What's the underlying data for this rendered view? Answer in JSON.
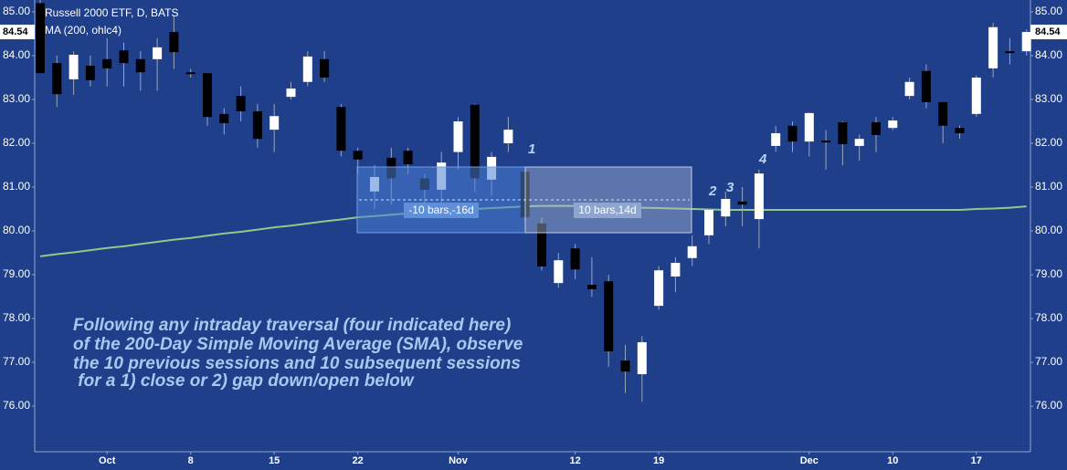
{
  "chart_data": {
    "type": "candlestick",
    "title": "Russell 2000 ETF, D, BATS",
    "indicator": "MA (200, ohlc4)",
    "last_price": {
      "value": 84.54,
      "label": "84.54"
    },
    "categories": [
      null,
      null,
      null,
      null,
      "Oct",
      null,
      null,
      null,
      null,
      "8",
      null,
      null,
      null,
      null,
      "15",
      null,
      null,
      null,
      null,
      "22",
      null,
      null,
      null,
      null,
      null,
      "Nov",
      null,
      null,
      null,
      null,
      null,
      null,
      "12",
      null,
      null,
      null,
      null,
      "19",
      null,
      null,
      null,
      null,
      null,
      null,
      null,
      null,
      "Dec",
      null,
      null,
      null,
      null,
      "10",
      null,
      null,
      null,
      null,
      "17",
      null,
      null,
      null
    ],
    "open": [
      85.2,
      83.83,
      83.46,
      83.77,
      83.92,
      84.12,
      83.92,
      83.92,
      84.54,
      83.62,
      83.6,
      82.67,
      83.08,
      82.73,
      82.31,
      83.06,
      83.4,
      83.92,
      82.83,
      81.83,
      80.9,
      81.67,
      81.83,
      81.2,
      80.94,
      81.8,
      82.88,
      81.17,
      82.0,
      81.35,
      80.17,
      78.81,
      79.6,
      78.77,
      78.85,
      77.04,
      76.73,
      78.29,
      78.96,
      79.38,
      79.9,
      80.33,
      80.67,
      80.27,
      81.94,
      82.4,
      82.04,
      82.06,
      82.48,
      81.94,
      82.48,
      82.35,
      83.08,
      83.65,
      82.94,
      82.35,
      82.67,
      83.71,
      84.1,
      84.1
    ],
    "high": [
      85.27,
      84.0,
      84.1,
      84.0,
      84.4,
      84.3,
      84.1,
      84.4,
      84.9,
      83.7,
      83.6,
      82.8,
      83.3,
      82.9,
      82.9,
      83.4,
      84.1,
      84.1,
      82.9,
      81.9,
      81.5,
      81.9,
      81.9,
      81.3,
      81.8,
      82.6,
      82.9,
      81.8,
      82.6,
      81.4,
      80.3,
      79.5,
      79.7,
      79.4,
      79.0,
      77.4,
      77.6,
      79.2,
      79.4,
      79.9,
      80.5,
      80.9,
      81.0,
      81.4,
      82.4,
      82.5,
      82.7,
      82.3,
      82.5,
      82.2,
      82.6,
      82.6,
      83.5,
      83.8,
      82.94,
      82.4,
      83.55,
      84.75,
      84.4,
      84.6
    ],
    "low": [
      83.6,
      82.83,
      83.1,
      83.3,
      83.3,
      83.3,
      83.2,
      83.2,
      83.7,
      83.5,
      82.4,
      82.2,
      82.5,
      81.9,
      81.8,
      83.0,
      83.3,
      83.4,
      81.7,
      81.3,
      80.5,
      80.6,
      81.3,
      80.5,
      80.6,
      81.4,
      80.9,
      80.8,
      81.8,
      80.2,
      79.1,
      78.7,
      78.9,
      78.5,
      76.9,
      76.3,
      76.1,
      78.2,
      78.6,
      79.2,
      79.7,
      80.1,
      80.1,
      79.6,
      81.8,
      81.8,
      81.7,
      81.4,
      81.5,
      81.6,
      81.8,
      82.3,
      83.0,
      82.8,
      82.0,
      82.1,
      82.6,
      83.5,
      83.8,
      84.0
    ],
    "close": [
      83.6,
      83.12,
      84.02,
      83.44,
      83.71,
      83.83,
      83.62,
      84.19,
      84.08,
      83.58,
      82.6,
      82.46,
      82.73,
      82.1,
      82.62,
      83.25,
      83.98,
      83.5,
      81.83,
      81.63,
      81.23,
      81.2,
      81.52,
      80.94,
      81.56,
      82.5,
      81.2,
      81.69,
      82.31,
      80.31,
      79.19,
      79.33,
      79.12,
      78.67,
      77.25,
      76.79,
      77.46,
      79.1,
      79.27,
      79.65,
      80.48,
      80.73,
      80.6,
      81.31,
      82.23,
      82.04,
      82.69,
      82.02,
      81.98,
      82.1,
      82.19,
      82.52,
      83.4,
      82.94,
      82.4,
      82.23,
      83.5,
      84.65,
      84.06,
      84.54
    ],
    "up_color": "#ffffff",
    "down_color": "#000000",
    "ma": {
      "color": "#8fca8a",
      "values": [
        79.42,
        79.47,
        79.51,
        79.56,
        79.61,
        79.65,
        79.7,
        79.75,
        79.8,
        79.84,
        79.89,
        79.94,
        79.98,
        80.03,
        80.08,
        80.12,
        80.17,
        80.22,
        80.26,
        80.31,
        80.34,
        80.37,
        80.4,
        80.43,
        80.45,
        80.48,
        80.5,
        80.52,
        80.54,
        80.56,
        80.57,
        80.57,
        80.57,
        80.56,
        80.55,
        80.54,
        80.53,
        80.52,
        80.51,
        80.5,
        80.49,
        80.48,
        80.48,
        80.48,
        80.48,
        80.48,
        80.48,
        80.48,
        80.48,
        80.48,
        80.48,
        80.48,
        80.48,
        80.48,
        80.48,
        80.48,
        80.5,
        80.51,
        80.53,
        80.56
      ]
    },
    "ylim": [
      74.96,
      85.27
    ],
    "yticks": [
      {
        "value": 76,
        "label": "76.00"
      },
      {
        "value": 77,
        "label": "77.00"
      },
      {
        "value": 78,
        "label": "78.00"
      },
      {
        "value": 79,
        "label": "79.00"
      },
      {
        "value": 80,
        "label": "80.00"
      },
      {
        "value": 81,
        "label": "81.00"
      },
      {
        "value": 82,
        "label": "82.00"
      },
      {
        "value": 83,
        "label": "83.00"
      },
      {
        "value": 84,
        "label": "84.00"
      },
      {
        "value": 85,
        "label": "85.00"
      }
    ],
    "measure_labels": [
      "-10 bars,-16d",
      "10 bars,14d"
    ],
    "markers": [
      "1",
      "2",
      "3",
      "4"
    ],
    "annotation": [
      "Following any intraday traversal (four indicated here)",
      "of the 200-Day Simple Moving Average (SMA), observe",
      "the 10 previous sessions and 10 subsequent sessions",
      " for a 1) close or 2) gap down/open below"
    ]
  }
}
